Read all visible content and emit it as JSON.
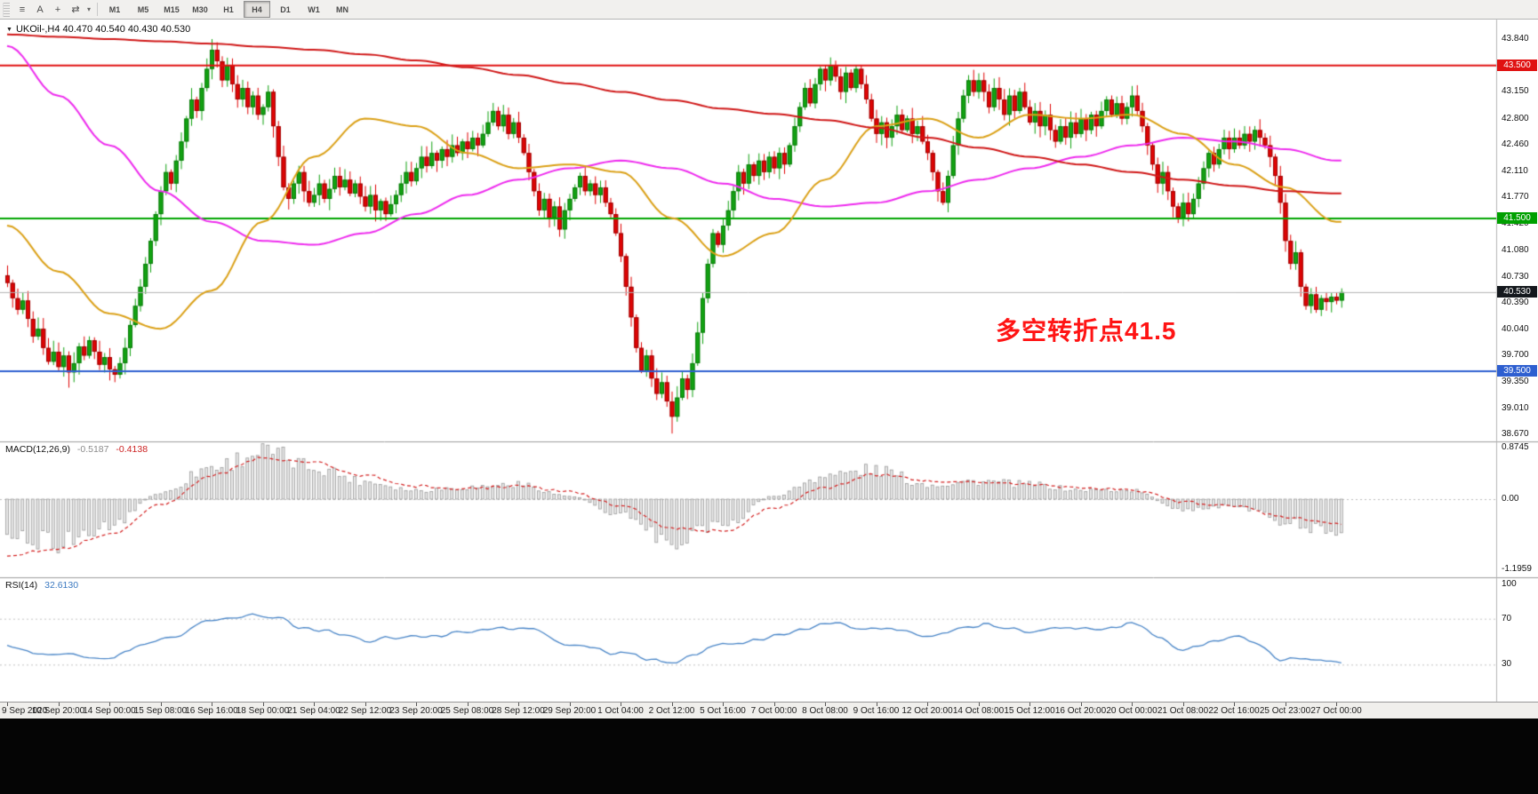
{
  "toolbar": {
    "icons": [
      {
        "name": "charts-list-icon",
        "glyph": "≡"
      },
      {
        "name": "text-annotation-icon",
        "glyph": "A"
      },
      {
        "name": "crosshair-icon",
        "glyph": "+"
      },
      {
        "name": "cycle-symbol-icon",
        "glyph": "⇄"
      },
      {
        "name": "dropdown-caret-icon",
        "glyph": "▾"
      }
    ],
    "timeframes": [
      "M1",
      "M5",
      "M15",
      "M30",
      "H1",
      "H4",
      "D1",
      "W1",
      "MN"
    ],
    "active_timeframe": "H4"
  },
  "chart": {
    "header": "UKOil-,H4 40.470 40.540 40.430 40.530",
    "annotation": {
      "text": "多空转折点41.5",
      "color": "#ff1414"
    }
  },
  "indicators": {
    "macd": {
      "label": "MACD(12,26,9)",
      "main_value": "-0.5187",
      "signal_value": "-0.4138"
    },
    "rsi": {
      "label": "RSI(14)",
      "value": "32.6130"
    }
  },
  "chart_data": {
    "type": "candlestick",
    "symbol": "UKOil-",
    "timeframe": "H4",
    "ohlc_display": {
      "open": "40.470",
      "high": "40.540",
      "low": "40.430",
      "close": "40.530"
    },
    "price_range": [
      38.67,
      43.95
    ],
    "price_axis_ticks": [
      {
        "t": "43.840",
        "p": 43.84
      },
      {
        "t": "43.150",
        "p": 43.15
      },
      {
        "t": "42.800",
        "p": 42.8
      },
      {
        "t": "42.460",
        "p": 42.46
      },
      {
        "t": "42.110",
        "p": 42.11
      },
      {
        "t": "41.770",
        "p": 41.77
      },
      {
        "t": "41.420",
        "p": 41.42
      },
      {
        "t": "41.080",
        "p": 41.08
      },
      {
        "t": "40.730",
        "p": 40.73
      },
      {
        "t": "40.390",
        "p": 40.39
      },
      {
        "t": "40.040",
        "p": 40.04
      },
      {
        "t": "39.700",
        "p": 39.7
      },
      {
        "t": "39.350",
        "p": 39.35
      },
      {
        "t": "39.010",
        "p": 39.01
      },
      {
        "t": "38.670",
        "p": 38.67
      }
    ],
    "price_badges": [
      {
        "t": "43.500",
        "p": 43.5,
        "c": "#e01212"
      },
      {
        "t": "41.500",
        "p": 41.5,
        "c": "#00a000"
      },
      {
        "t": "40.530",
        "p": 40.53,
        "c": "#14181d"
      },
      {
        "t": "39.500",
        "p": 39.5,
        "c": "#2e5fd0"
      }
    ],
    "hlines": [
      {
        "price": 43.5,
        "color": "#e01212",
        "width": 2
      },
      {
        "price": 41.5,
        "color": "#00a500",
        "width": 2
      },
      {
        "price": 39.5,
        "color": "#2e5fd0",
        "width": 2
      },
      {
        "price": 40.53,
        "color": "#b4b4b4",
        "width": 1
      }
    ],
    "time_labels": [
      {
        "b": 0,
        "t": "9 Sep 2020"
      },
      {
        "b": 10,
        "t": "10 Sep 20:00"
      },
      {
        "b": 20,
        "t": "14 Sep 00:00"
      },
      {
        "b": 30,
        "t": "15 Sep 08:00"
      },
      {
        "b": 40,
        "t": "16 Sep 16:00"
      },
      {
        "b": 50,
        "t": "18 Sep 00:00"
      },
      {
        "b": 60,
        "t": "21 Sep 04:00"
      },
      {
        "b": 70,
        "t": "22 Sep 12:00"
      },
      {
        "b": 80,
        "t": "23 Sep 20:00"
      },
      {
        "b": 90,
        "t": "25 Sep 08:00"
      },
      {
        "b": 100,
        "t": "28 Sep 12:00"
      },
      {
        "b": 110,
        "t": "29 Sep 20:00"
      },
      {
        "b": 120,
        "t": "1 Oct 04:00"
      },
      {
        "b": 130,
        "t": "2 Oct 12:00"
      },
      {
        "b": 140,
        "t": "5 Oct 16:00"
      },
      {
        "b": 150,
        "t": "7 Oct 00:00"
      },
      {
        "b": 160,
        "t": "8 Oct 08:00"
      },
      {
        "b": 170,
        "t": "9 Oct 16:00"
      },
      {
        "b": 180,
        "t": "12 Oct 20:00"
      },
      {
        "b": 190,
        "t": "14 Oct 08:00"
      },
      {
        "b": 200,
        "t": "15 Oct 12:00"
      },
      {
        "b": 210,
        "t": "16 Oct 20:00"
      },
      {
        "b": 220,
        "t": "20 Oct 00:00"
      },
      {
        "b": 230,
        "t": "21 Oct 08:00"
      },
      {
        "b": 240,
        "t": "22 Oct 16:00"
      },
      {
        "b": 250,
        "t": "25 Oct 23:00"
      },
      {
        "b": 260,
        "t": "27 Oct 00:00"
      }
    ],
    "first_open": 40.75,
    "closes": [
      40.65,
      40.45,
      40.3,
      40.42,
      40.18,
      39.95,
      40.05,
      39.8,
      39.62,
      39.75,
      39.55,
      39.7,
      39.48,
      39.6,
      39.82,
      39.7,
      39.9,
      39.75,
      39.58,
      39.68,
      39.52,
      39.45,
      39.6,
      39.8,
      40.1,
      40.35,
      40.6,
      40.9,
      41.2,
      41.55,
      41.85,
      42.1,
      41.95,
      42.25,
      42.5,
      42.8,
      43.05,
      42.9,
      43.2,
      43.45,
      43.7,
      43.55,
      43.3,
      43.5,
      43.25,
      43.05,
      43.2,
      42.95,
      43.1,
      42.85,
      42.95,
      43.15,
      42.7,
      42.3,
      41.9,
      41.75,
      41.95,
      42.1,
      41.85,
      41.7,
      41.8,
      41.95,
      41.75,
      41.88,
      42.05,
      41.9,
      42.0,
      41.82,
      41.95,
      41.78,
      41.65,
      41.8,
      41.6,
      41.72,
      41.55,
      41.68,
      41.8,
      41.95,
      42.1,
      41.98,
      42.15,
      42.3,
      42.18,
      42.35,
      42.25,
      42.4,
      42.3,
      42.45,
      42.35,
      42.5,
      42.4,
      42.55,
      42.45,
      42.6,
      42.75,
      42.9,
      42.7,
      42.85,
      42.6,
      42.75,
      42.55,
      42.35,
      42.1,
      41.85,
      41.6,
      41.75,
      41.5,
      41.65,
      41.35,
      41.6,
      41.75,
      41.9,
      42.05,
      41.85,
      41.95,
      41.8,
      41.9,
      41.7,
      41.55,
      41.3,
      41.0,
      40.6,
      40.2,
      39.8,
      39.5,
      39.7,
      39.4,
      39.2,
      39.35,
      39.1,
      38.9,
      39.15,
      39.4,
      39.25,
      39.6,
      40.0,
      40.45,
      40.9,
      41.3,
      41.15,
      41.4,
      41.6,
      41.85,
      42.1,
      41.95,
      42.2,
      42.05,
      42.25,
      42.1,
      42.3,
      42.15,
      42.35,
      42.2,
      42.45,
      42.7,
      42.95,
      43.2,
      43.0,
      43.25,
      43.45,
      43.3,
      43.5,
      43.35,
      43.15,
      43.4,
      43.2,
      43.45,
      43.25,
      43.05,
      42.8,
      42.6,
      42.75,
      42.55,
      42.7,
      42.85,
      42.65,
      42.8,
      42.6,
      42.7,
      42.5,
      42.35,
      42.1,
      41.85,
      41.7,
      42.05,
      42.45,
      42.8,
      43.1,
      43.3,
      43.15,
      43.3,
      43.15,
      42.95,
      43.2,
      43.05,
      42.85,
      43.1,
      42.9,
      43.15,
      42.95,
      42.75,
      42.9,
      42.7,
      42.85,
      42.65,
      42.5,
      42.7,
      42.55,
      42.75,
      42.6,
      42.8,
      42.65,
      42.85,
      42.7,
      42.9,
      43.05,
      42.85,
      43.0,
      42.8,
      42.95,
      43.1,
      42.9,
      42.7,
      42.45,
      42.2,
      41.95,
      42.1,
      41.85,
      41.65,
      41.5,
      41.7,
      41.55,
      41.75,
      41.95,
      42.15,
      42.35,
      42.2,
      42.4,
      42.55,
      42.4,
      42.55,
      42.45,
      42.6,
      42.5,
      42.65,
      42.55,
      42.45,
      42.3,
      42.05,
      41.7,
      41.2,
      40.9,
      41.05,
      40.6,
      40.35,
      40.5,
      40.3,
      40.45,
      40.4,
      40.47,
      40.42,
      40.53
    ],
    "wick_overrides": {
      "12": {
        "low": 39.28
      },
      "40": {
        "high": 43.84
      },
      "130": {
        "low": 38.68
      },
      "161": {
        "high": 43.6
      }
    },
    "anchors_every_n_bars": 10,
    "ma_red": [
      43.9,
      43.87,
      43.84,
      43.81,
      43.78,
      43.74,
      43.7,
      43.64,
      43.56,
      43.47,
      43.37,
      43.26,
      43.15,
      43.04,
      42.93,
      42.86,
      42.78,
      42.68,
      42.55,
      42.42,
      42.3,
      42.2,
      42.1,
      42.0,
      41.92,
      41.85,
      41.82
    ],
    "ma_magenta": [
      43.75,
      43.1,
      42.45,
      41.85,
      41.45,
      41.2,
      41.15,
      41.3,
      41.55,
      41.8,
      42.0,
      42.15,
      42.25,
      42.15,
      41.95,
      41.75,
      41.65,
      41.7,
      41.85,
      42.0,
      42.15,
      42.3,
      42.45,
      42.55,
      42.5,
      42.4,
      42.25
    ],
    "ma_orange": [
      41.4,
      40.8,
      40.25,
      40.05,
      40.55,
      41.45,
      42.3,
      42.8,
      42.7,
      42.35,
      42.15,
      42.2,
      42.1,
      41.5,
      41.0,
      41.3,
      42.0,
      42.7,
      42.8,
      42.55,
      42.85,
      42.8,
      42.85,
      42.6,
      42.2,
      41.9,
      41.45
    ],
    "macd": {
      "hist_anchors": [
        -0.55,
        -0.75,
        -0.45,
        0.1,
        0.55,
        0.8,
        0.55,
        0.3,
        0.15,
        0.2,
        0.25,
        0.05,
        -0.25,
        -0.7,
        -0.45,
        0.05,
        0.4,
        0.5,
        0.25,
        0.3,
        0.25,
        0.15,
        0.15,
        -0.2,
        -0.1,
        -0.4,
        -0.52
      ],
      "signal_anchors": [
        -0.95,
        -0.85,
        -0.6,
        -0.1,
        0.4,
        0.7,
        0.62,
        0.4,
        0.22,
        0.18,
        0.22,
        0.12,
        -0.1,
        -0.5,
        -0.55,
        -0.15,
        0.2,
        0.42,
        0.32,
        0.28,
        0.26,
        0.2,
        0.16,
        -0.05,
        -0.12,
        -0.3,
        -0.41
      ],
      "axis_ticks": [
        {
          "t": "0.8745",
          "v": 0.8745
        },
        {
          "t": "0.00",
          "v": 0
        },
        {
          "t": "-1.1959",
          "v": -1.1959
        }
      ],
      "range": [
        -1.1959,
        0.8745
      ]
    },
    "rsi": {
      "anchors": [
        45,
        38,
        36,
        52,
        68,
        74,
        60,
        52,
        55,
        58,
        62,
        48,
        40,
        32,
        48,
        55,
        66,
        62,
        55,
        65,
        60,
        62,
        65,
        45,
        55,
        35,
        32.6
      ],
      "levels": [
        70,
        30
      ],
      "axis_ticks": [
        {
          "t": "100",
          "v": 100
        },
        {
          "t": "70",
          "v": 70
        },
        {
          "t": "30",
          "v": 30
        }
      ],
      "range": [
        0,
        100
      ]
    },
    "colors": {
      "up": "#12a312",
      "up_dark": "#0a7a0a",
      "down": "#e00505",
      "down_dark": "#9c0202",
      "ma_red": "#d01818",
      "ma_magenta": "#ee2cee",
      "ma_orange": "#dba118",
      "macd_hist_fill": "#e7e7e7",
      "macd_hist_edge": "#9a9a9a",
      "macd_signal": "#d42222",
      "rsi_line": "#4a86c8",
      "grid": "#c4c4c4"
    }
  }
}
